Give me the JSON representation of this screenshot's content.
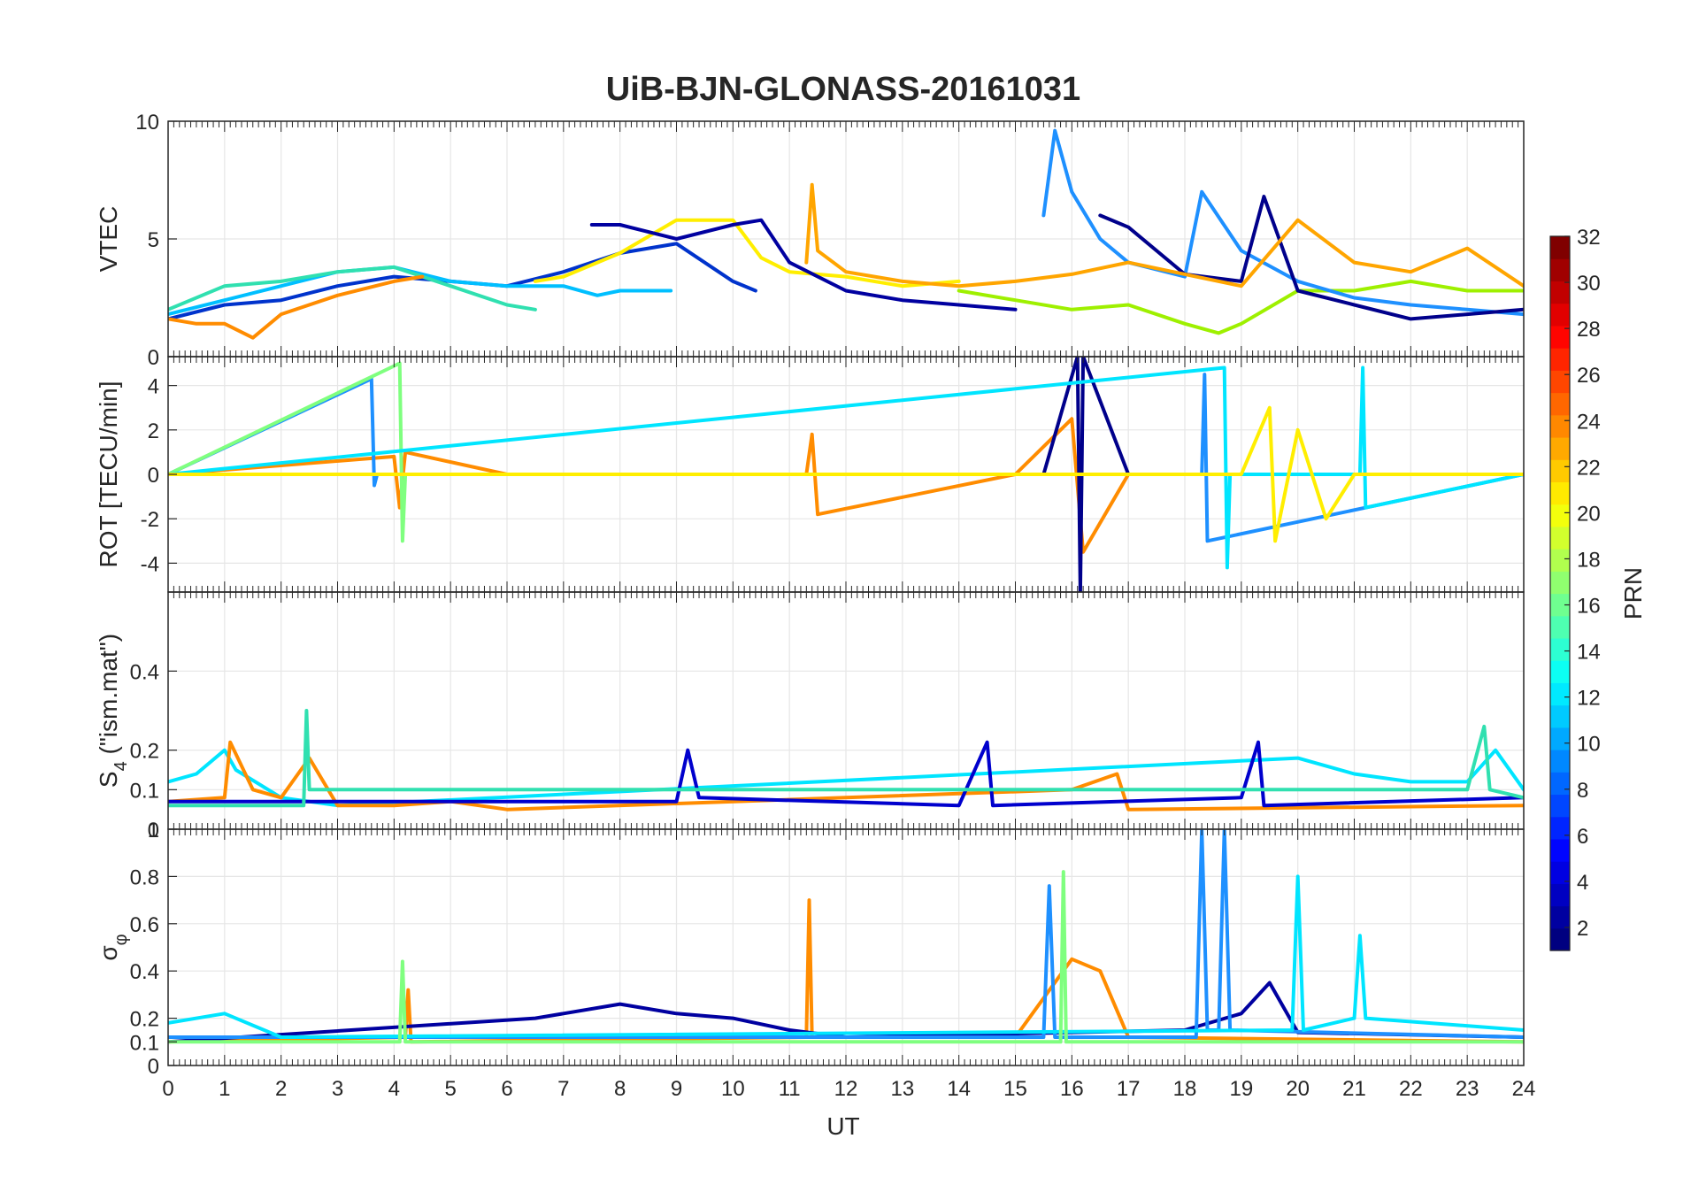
{
  "chart_data": {
    "type": "line",
    "title": "UiB-BJN-GLONASS-20161031",
    "xlabel": "UT",
    "x_ticks": [
      "0",
      "1",
      "2",
      "3",
      "4",
      "5",
      "6",
      "7",
      "8",
      "9",
      "10",
      "11",
      "12",
      "13",
      "14",
      "15",
      "16",
      "17",
      "18",
      "19",
      "20",
      "21",
      "22",
      "23",
      "24"
    ],
    "xlim": [
      0,
      24
    ],
    "grid": true,
    "colorbar": {
      "label": "PRN",
      "range": [
        1,
        32
      ],
      "colormap": "jet",
      "ticks": [
        "2",
        "4",
        "6",
        "8",
        "10",
        "12",
        "14",
        "16",
        "18",
        "20",
        "22",
        "24",
        "26",
        "28",
        "30",
        "32"
      ],
      "tick_values": [
        2,
        4,
        6,
        8,
        10,
        12,
        14,
        16,
        18,
        20,
        22,
        24,
        26,
        28,
        30,
        32
      ]
    },
    "panels": [
      {
        "ylabel": "VTEC",
        "ylim": [
          0,
          10
        ],
        "y_ticks": [
          "0",
          "5",
          "10"
        ],
        "y_tick_values": [
          0,
          5,
          10
        ],
        "series": [
          {
            "color": "#0033cc",
            "x": [
              0,
              1,
              2,
              3,
              4,
              5,
              6,
              7,
              8,
              9,
              10,
              10.4
            ],
            "y": [
              1.6,
              2.2,
              2.4,
              3.0,
              3.4,
              3.2,
              3.0,
              3.6,
              4.4,
              4.8,
              3.2,
              2.8
            ]
          },
          {
            "color": "#00bfff",
            "x": [
              0,
              1,
              2,
              3,
              4,
              5,
              6,
              7,
              7.6,
              8,
              8.9
            ],
            "y": [
              1.8,
              2.4,
              3.0,
              3.6,
              3.8,
              3.2,
              3.0,
              3.0,
              2.6,
              2.8,
              2.8
            ]
          },
          {
            "color": "#30e0b0",
            "x": [
              0,
              1,
              2,
              3,
              4,
              5,
              6,
              6.5
            ],
            "y": [
              2.0,
              3.0,
              3.2,
              3.6,
              3.8,
              3.0,
              2.2,
              2.0
            ]
          },
          {
            "color": "#ff8c00",
            "x": [
              0,
              0.5,
              1,
              1.5,
              2,
              3,
              4,
              4.5
            ],
            "y": [
              1.6,
              1.4,
              1.4,
              0.8,
              1.8,
              2.6,
              3.2,
              3.4
            ]
          },
          {
            "color": "#ffee00",
            "x": [
              6.5,
              7,
              8,
              9,
              10,
              10.5,
              11,
              12,
              13,
              14
            ],
            "y": [
              3.2,
              3.4,
              4.4,
              5.8,
              5.8,
              4.2,
              3.6,
              3.4,
              3.0,
              3.2
            ]
          },
          {
            "color": "#0000a0",
            "x": [
              7.5,
              8,
              9,
              10,
              10.5,
              11,
              12,
              13,
              14,
              15
            ],
            "y": [
              5.6,
              5.6,
              5.0,
              5.6,
              5.8,
              4.0,
              2.8,
              2.4,
              2.2,
              2.0
            ]
          },
          {
            "color": "#9ef000",
            "x": [
              14,
              15,
              16,
              17,
              18,
              18.6,
              19,
              20,
              21,
              22,
              23,
              24
            ],
            "y": [
              2.8,
              2.4,
              2.0,
              2.2,
              1.4,
              1.0,
              1.4,
              2.8,
              2.8,
              3.2,
              2.8,
              2.8
            ]
          },
          {
            "color": "#1e90ff",
            "x": [
              15.5,
              15.7,
              16,
              16.5,
              17,
              18,
              18.3,
              19,
              20,
              21,
              22,
              23,
              24
            ],
            "y": [
              6.0,
              9.6,
              7.0,
              5.0,
              4.0,
              3.4,
              7.0,
              4.5,
              3.2,
              2.5,
              2.2,
              2.0,
              1.8
            ]
          },
          {
            "color": "#00008b",
            "x": [
              16.5,
              17,
              18,
              19,
              19.4,
              20,
              21,
              22,
              23,
              24
            ],
            "y": [
              6.0,
              5.5,
              3.5,
              3.2,
              6.8,
              2.8,
              2.2,
              1.6,
              1.8,
              2.0
            ]
          },
          {
            "color": "#ffa500",
            "x": [
              11.3,
              11.4,
              11.5,
              12,
              13,
              14,
              15,
              16,
              17,
              18,
              19,
              20,
              21,
              22,
              23,
              24
            ],
            "y": [
              4.0,
              7.3,
              4.5,
              3.6,
              3.2,
              3.0,
              3.2,
              3.5,
              4.0,
              3.5,
              3.0,
              5.8,
              4.0,
              3.6,
              4.6,
              3.0
            ]
          }
        ]
      },
      {
        "ylabel": "ROT [TECU/min]",
        "ylim": [
          -5.3,
          5.3
        ],
        "y_ticks": [
          "-4",
          "-2",
          "0",
          "2",
          "4"
        ],
        "y_tick_values": [
          -4,
          -2,
          0,
          2,
          4
        ],
        "series": [
          {
            "color": "#ff8c00",
            "x": [
              0,
              4,
              4.1,
              4.2,
              6,
              11.3,
              11.4,
              11.5,
              15,
              16,
              16.2,
              17,
              24
            ],
            "y": [
              0,
              0.8,
              -1.5,
              1.0,
              0,
              0,
              1.8,
              -1.8,
              0,
              2.5,
              -3.5,
              0,
              0
            ]
          },
          {
            "color": "#00008b",
            "x": [
              0,
              15.5,
              16.1,
              16.15,
              16.2,
              17,
              24
            ],
            "y": [
              0,
              0,
              5.3,
              -5.3,
              5.3,
              0,
              0
            ]
          },
          {
            "color": "#1e90ff",
            "x": [
              0,
              3.6,
              3.65,
              3.7,
              18.3,
              18.35,
              18.4,
              24
            ],
            "y": [
              0,
              4.3,
              -0.5,
              0,
              0,
              4.5,
              -3.0,
              0
            ]
          },
          {
            "color": "#7fff7f",
            "x": [
              0,
              4.1,
              4.15,
              4.2,
              24
            ],
            "y": [
              0,
              5.0,
              -3.0,
              0,
              0
            ]
          },
          {
            "color": "#00e5ff",
            "x": [
              0,
              18.7,
              18.75,
              18.8,
              21.1,
              21.15,
              21.2,
              24
            ],
            "y": [
              0,
              4.8,
              -4.2,
              0,
              0,
              4.8,
              -1.5,
              0
            ]
          },
          {
            "color": "#ffee00",
            "x": [
              0,
              19,
              19.5,
              19.6,
              20,
              20.5,
              21,
              24
            ],
            "y": [
              0,
              0,
              3.0,
              -3.0,
              2.0,
              -2.0,
              0,
              0
            ]
          }
        ]
      },
      {
        "ylabel": "S",
        "ylabel_sub": "4",
        "ylabel_suffix": " (\"ism.mat\")",
        "ylim": [
          0,
          0.6
        ],
        "y_ticks": [
          "0",
          "0.1",
          "0.2",
          "0.4"
        ],
        "y_tick_values": [
          0,
          0.1,
          0.2,
          0.4
        ],
        "series": [
          {
            "color": "#00e5ff",
            "x": [
              0,
              0.5,
              1,
              1.2,
              2,
              3,
              20,
              21,
              22,
              23,
              23.5,
              24
            ],
            "y": [
              0.12,
              0.14,
              0.2,
              0.15,
              0.08,
              0.06,
              0.18,
              0.14,
              0.12,
              0.12,
              0.2,
              0.1
            ]
          },
          {
            "color": "#ff8c00",
            "x": [
              0,
              1,
              1.1,
              1.5,
              2,
              2.5,
              3,
              4,
              5,
              6,
              12,
              16,
              16.8,
              17,
              24
            ],
            "y": [
              0.07,
              0.08,
              0.22,
              0.1,
              0.08,
              0.18,
              0.06,
              0.06,
              0.07,
              0.05,
              0.08,
              0.1,
              0.14,
              0.05,
              0.06
            ]
          },
          {
            "color": "#0000cd",
            "x": [
              0,
              9,
              9.2,
              9.4,
              14,
              14.5,
              14.6,
              19,
              19.3,
              19.4,
              24
            ],
            "y": [
              0.07,
              0.07,
              0.2,
              0.08,
              0.06,
              0.22,
              0.06,
              0.08,
              0.22,
              0.06,
              0.08
            ]
          },
          {
            "color": "#30e0b0",
            "x": [
              0,
              2.4,
              2.45,
              2.5,
              23,
              23.3,
              23.4,
              24
            ],
            "y": [
              0.06,
              0.06,
              0.3,
              0.1,
              0.1,
              0.26,
              0.1,
              0.08
            ]
          }
        ]
      },
      {
        "ylabel": "σ",
        "ylabel_sub": "φ",
        "ylim": [
          0,
          1
        ],
        "y_ticks": [
          "0",
          "0.1",
          "0.2",
          "0.4",
          "0.6",
          "0.8",
          "1"
        ],
        "y_tick_values": [
          0,
          0.1,
          0.2,
          0.4,
          0.6,
          0.8,
          1
        ],
        "series": [
          {
            "color": "#ff8c00",
            "x": [
              0,
              4.2,
              4.25,
              4.3,
              11.3,
              11.35,
              11.4,
              15,
              16,
              16.5,
              17,
              24
            ],
            "y": [
              0.1,
              0.12,
              0.32,
              0.1,
              0.12,
              0.7,
              0.12,
              0.12,
              0.45,
              0.4,
              0.12,
              0.1
            ]
          },
          {
            "color": "#0000a0",
            "x": [
              0,
              6.5,
              7,
              8,
              9,
              10,
              11,
              12,
              18,
              19,
              19.5,
              20,
              24
            ],
            "y": [
              0.1,
              0.2,
              0.22,
              0.26,
              0.22,
              0.2,
              0.15,
              0.12,
              0.15,
              0.22,
              0.35,
              0.14,
              0.12
            ]
          },
          {
            "color": "#1e90ff",
            "x": [
              0,
              15.5,
              15.6,
              15.7,
              18.2,
              18.3,
              18.4,
              18.6,
              18.7,
              18.8,
              24
            ],
            "y": [
              0.12,
              0.12,
              0.76,
              0.12,
              0.12,
              1.0,
              0.15,
              0.15,
              1.0,
              0.15,
              0.12
            ]
          },
          {
            "color": "#00e5ff",
            "x": [
              0,
              1,
              2,
              19.9,
              20,
              20.1,
              21,
              21.1,
              21.2,
              24
            ],
            "y": [
              0.18,
              0.22,
              0.12,
              0.15,
              0.8,
              0.15,
              0.2,
              0.55,
              0.2,
              0.15
            ]
          },
          {
            "color": "#7fff7f",
            "x": [
              0,
              4.1,
              4.15,
              4.2,
              15.8,
              15.85,
              15.9,
              24
            ],
            "y": [
              0.1,
              0.1,
              0.44,
              0.1,
              0.1,
              0.82,
              0.1,
              0.1
            ]
          }
        ]
      }
    ]
  }
}
